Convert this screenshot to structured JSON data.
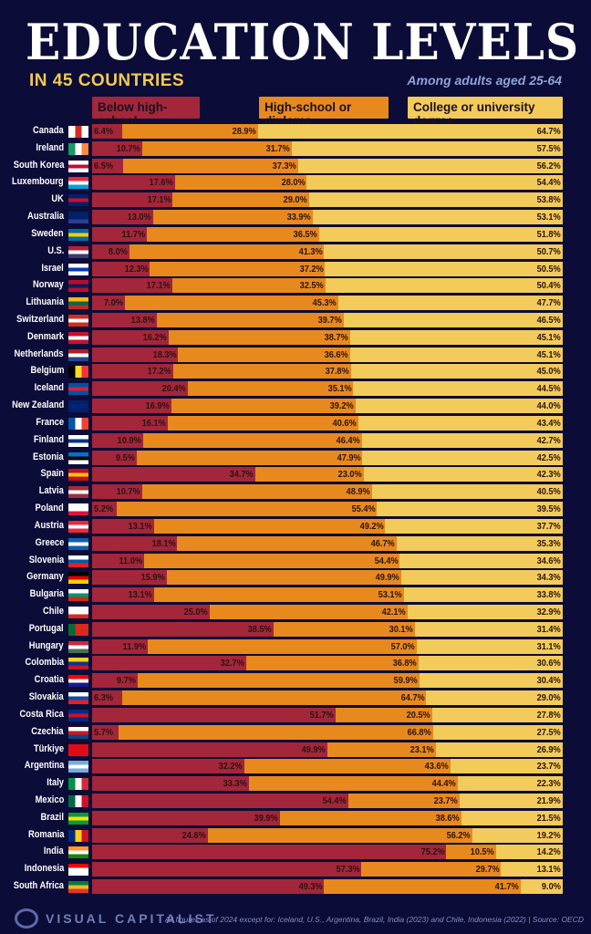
{
  "header": {
    "title": "EDUCATION LEVELS",
    "subtitle": "IN 45 COUNTRIES",
    "note": "Among adults aged 25-64"
  },
  "footer": {
    "brand": "VISUAL CAPITALIST",
    "footnote": "All figures as of 2024 except for: Iceland, U.S., Argentina, Brazil, India (2023) and Chile, Indonesia (2022)  |  Source: OECD"
  },
  "colors": {
    "below": "#a3263a",
    "high": "#e8891e",
    "college": "#f3cb5a"
  },
  "chart_data": {
    "type": "bar",
    "stacked": true,
    "orientation": "horizontal",
    "title": "EDUCATION LEVELS",
    "subtitle": "IN 45 COUNTRIES",
    "series_names": [
      "Below high-school",
      "High-school or diploma",
      "College or university degree"
    ],
    "categories": [
      "Canada",
      "Ireland",
      "South Korea",
      "Luxembourg",
      "UK",
      "Australia",
      "Sweden",
      "U.S.",
      "Israel",
      "Norway",
      "Lithuania",
      "Switzerland",
      "Denmark",
      "Netherlands",
      "Belgium",
      "Iceland",
      "New Zealand",
      "France",
      "Finland",
      "Estonia",
      "Spain",
      "Latvia",
      "Poland",
      "Austria",
      "Greece",
      "Slovenia",
      "Germany",
      "Bulgaria",
      "Chile",
      "Portugal",
      "Hungary",
      "Colombia",
      "Croatia",
      "Slovakia",
      "Costa Rica",
      "Czechia",
      "Türkiye",
      "Argentina",
      "Italy",
      "Mexico",
      "Brazil",
      "Romania",
      "India",
      "Indonesia",
      "South Africa"
    ],
    "series": [
      {
        "name": "Below high-school",
        "values": [
          6.4,
          10.7,
          6.5,
          17.6,
          17.1,
          13.0,
          11.7,
          8.0,
          12.3,
          17.1,
          7.0,
          13.8,
          16.2,
          18.3,
          17.2,
          20.4,
          16.9,
          16.1,
          10.9,
          9.5,
          34.7,
          10.7,
          5.2,
          13.1,
          18.1,
          11.0,
          15.9,
          13.1,
          25.0,
          38.5,
          11.9,
          32.7,
          9.7,
          6.3,
          51.7,
          5.7,
          49.9,
          32.2,
          33.3,
          54.4,
          39.9,
          24.6,
          75.2,
          57.3,
          49.3
        ]
      },
      {
        "name": "High-school or diploma",
        "values": [
          28.9,
          31.7,
          37.3,
          28.0,
          29.0,
          33.9,
          36.5,
          41.3,
          37.2,
          32.5,
          45.3,
          39.7,
          38.7,
          36.6,
          37.8,
          35.1,
          39.2,
          40.6,
          46.4,
          47.9,
          23.0,
          48.9,
          55.4,
          49.2,
          46.7,
          54.4,
          49.9,
          53.1,
          42.1,
          30.1,
          57.0,
          36.8,
          59.9,
          64.7,
          20.5,
          66.8,
          23.1,
          43.6,
          44.4,
          23.7,
          38.6,
          56.2,
          10.5,
          29.7,
          41.7
        ]
      },
      {
        "name": "College or university degree",
        "values": [
          64.7,
          57.5,
          56.2,
          54.4,
          53.8,
          53.1,
          51.8,
          50.7,
          50.5,
          50.4,
          47.7,
          46.5,
          45.1,
          45.1,
          45.0,
          44.5,
          44.0,
          43.4,
          42.7,
          42.5,
          42.3,
          40.5,
          39.5,
          37.7,
          35.3,
          34.6,
          34.3,
          33.8,
          32.9,
          31.4,
          31.1,
          30.6,
          30.4,
          29.0,
          27.8,
          27.5,
          26.9,
          23.7,
          22.3,
          21.9,
          21.5,
          19.2,
          14.2,
          13.1,
          9.0
        ]
      }
    ],
    "value_format": "percent",
    "xlim": [
      0,
      100
    ],
    "legend": "top"
  },
  "flags": [
    [
      "h",
      "#fff",
      "#d52b1e",
      "#fff"
    ],
    [
      "h",
      "#169b62",
      "#fff",
      "#ff883e"
    ],
    [
      "v",
      "#fff",
      "#c60c30",
      "#fff"
    ],
    [
      "v",
      "#ed2939",
      "#fff",
      "#00a1de"
    ],
    [
      "v",
      "#012169",
      "#c8102e",
      "#012169"
    ],
    [
      "v",
      "#012169",
      "#012169",
      "#2a3f8f"
    ],
    [
      "v",
      "#006aa7",
      "#fecc00",
      "#006aa7"
    ],
    [
      "v",
      "#b22234",
      "#fff",
      "#3c3b6e"
    ],
    [
      "v",
      "#fff",
      "#0038b8",
      "#fff"
    ],
    [
      "v",
      "#ba0c2f",
      "#00205b",
      "#ba0c2f"
    ],
    [
      "v",
      "#fdb913",
      "#006a44",
      "#c1272d"
    ],
    [
      "v",
      "#d52b1e",
      "#fff",
      "#d52b1e"
    ],
    [
      "v",
      "#c8102e",
      "#fff",
      "#c8102e"
    ],
    [
      "v",
      "#ae1c28",
      "#fff",
      "#21468b"
    ],
    [
      "h",
      "#000",
      "#fdda24",
      "#ef3340"
    ],
    [
      "v",
      "#02529c",
      "#dc1e35",
      "#02529c"
    ],
    [
      "v",
      "#012169",
      "#00247d",
      "#012169"
    ],
    [
      "h",
      "#0055a4",
      "#fff",
      "#ef4135"
    ],
    [
      "v",
      "#fff",
      "#003580",
      "#fff"
    ],
    [
      "v",
      "#0072ce",
      "#000",
      "#fff"
    ],
    [
      "v",
      "#c60b1e",
      "#ffc400",
      "#c60b1e"
    ],
    [
      "v",
      "#9e3039",
      "#fff",
      "#9e3039"
    ],
    [
      "v",
      "#fff",
      "#fff",
      "#dc143c"
    ],
    [
      "v",
      "#ed2939",
      "#fff",
      "#ed2939"
    ],
    [
      "v",
      "#0d5eaf",
      "#fff",
      "#0d5eaf"
    ],
    [
      "v",
      "#fff",
      "#005da4",
      "#ed1c24"
    ],
    [
      "v",
      "#000",
      "#dd0000",
      "#ffce00"
    ],
    [
      "v",
      "#fff",
      "#00966e",
      "#d62612"
    ],
    [
      "v",
      "#fff",
      "#fff",
      "#d52b1e"
    ],
    [
      "h",
      "#046a38",
      "#da291c",
      "#da291c"
    ],
    [
      "v",
      "#ce2939",
      "#fff",
      "#477050"
    ],
    [
      "v",
      "#fcd116",
      "#003893",
      "#ce1126"
    ],
    [
      "v",
      "#ff0000",
      "#fff",
      "#171796"
    ],
    [
      "v",
      "#fff",
      "#0b4ea2",
      "#ee1c25"
    ],
    [
      "v",
      "#002b7f",
      "#ce1126",
      "#002b7f"
    ],
    [
      "v",
      "#fff",
      "#d7141a",
      "#11457e"
    ],
    [
      "v",
      "#e30a17",
      "#e30a17",
      "#e30a17"
    ],
    [
      "v",
      "#74acdf",
      "#fff",
      "#74acdf"
    ],
    [
      "h",
      "#009246",
      "#fff",
      "#ce2b37"
    ],
    [
      "h",
      "#006847",
      "#fff",
      "#ce1126"
    ],
    [
      "v",
      "#009c3b",
      "#ffdf00",
      "#009c3b"
    ],
    [
      "h",
      "#002b7f",
      "#fcd116",
      "#ce1126"
    ],
    [
      "v",
      "#ff9933",
      "#fff",
      "#138808"
    ],
    [
      "v",
      "#ff0000",
      "#fff",
      "#fff"
    ],
    [
      "v",
      "#007a4d",
      "#ffb612",
      "#de3831"
    ]
  ]
}
